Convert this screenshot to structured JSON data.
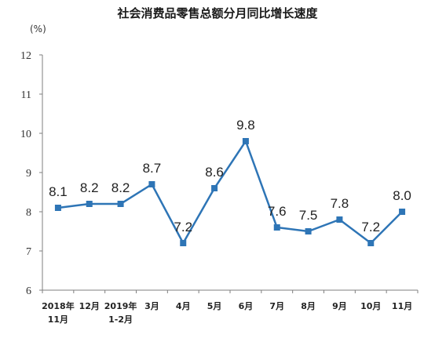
{
  "chart_data": {
    "type": "line",
    "title": "社会消费品零售总额分月同比增长速度",
    "unit": "(%)",
    "categories": [
      [
        "2018年",
        "11月"
      ],
      [
        "12月"
      ],
      [
        "2019年",
        "1-2月"
      ],
      [
        "3月"
      ],
      [
        "4月"
      ],
      [
        "5月"
      ],
      [
        "6月"
      ],
      [
        "7月"
      ],
      [
        "8月"
      ],
      [
        "9月"
      ],
      [
        "10月"
      ],
      [
        "11月"
      ]
    ],
    "values": [
      8.1,
      8.2,
      8.2,
      8.7,
      7.2,
      8.6,
      9.8,
      7.6,
      7.5,
      7.8,
      7.2,
      8.0
    ],
    "data_labels": [
      "8.1",
      "8.2",
      "8.2",
      "8.7",
      "7.2",
      "8.6",
      "9.8",
      "7.6",
      "7.5",
      "7.8",
      "7.2",
      "8.0"
    ],
    "ylim": [
      6,
      12
    ],
    "yticks": [
      6,
      7,
      8,
      9,
      10,
      11,
      12
    ],
    "grid": false,
    "legend": "none",
    "colors": {
      "line": "#2e75b6",
      "axis": "#7f7f7f"
    }
  }
}
